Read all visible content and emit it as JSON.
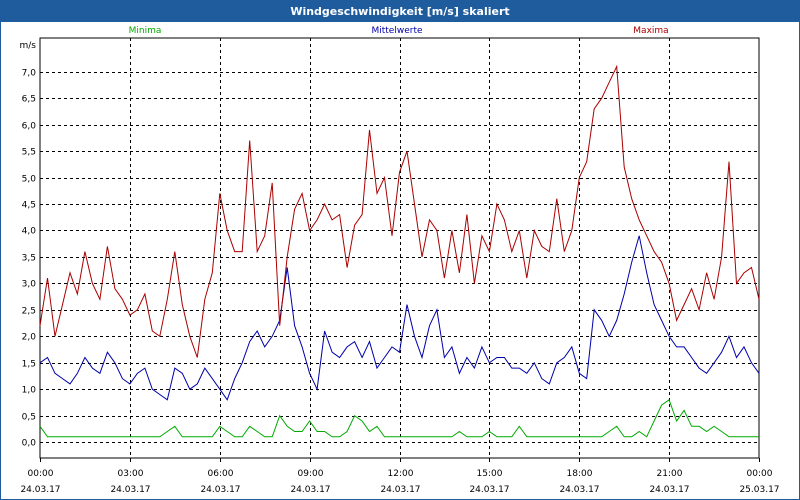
{
  "window": {
    "title": "Windgeschwindigkeit [m/s] skaliert"
  },
  "chart_data": {
    "type": "line",
    "title": "Windgeschwindigkeit [m/s] skaliert",
    "ylabel": "m/s",
    "ylim": [
      -0.3,
      7.6
    ],
    "yticks": [
      "0,0",
      "0,5",
      "1,0",
      "1,5",
      "2,0",
      "2,5",
      "3,0",
      "3,5",
      "4,0",
      "4,5",
      "5,0",
      "5,5",
      "6,0",
      "6,5",
      "7,0"
    ],
    "xticks": [
      {
        "time": "00:00",
        "date": "24.03.17"
      },
      {
        "time": "03:00",
        "date": "24.03.17"
      },
      {
        "time": "06:00",
        "date": "24.03.17"
      },
      {
        "time": "09:00",
        "date": "24.03.17"
      },
      {
        "time": "12:00",
        "date": "24.03.17"
      },
      {
        "time": "15:00",
        "date": "24.03.17"
      },
      {
        "time": "18:00",
        "date": "24.03.17"
      },
      {
        "time": "21:00",
        "date": "24.03.17"
      },
      {
        "time": "00:00",
        "date": "25.03.17"
      }
    ],
    "x_hours": [
      0,
      0.25,
      0.5,
      0.75,
      1,
      1.25,
      1.5,
      1.75,
      2,
      2.25,
      2.5,
      2.75,
      3,
      3.25,
      3.5,
      3.75,
      4,
      4.25,
      4.5,
      4.75,
      5,
      5.25,
      5.5,
      5.75,
      6,
      6.25,
      6.5,
      6.75,
      7,
      7.25,
      7.5,
      7.75,
      8,
      8.25,
      8.5,
      8.75,
      9,
      9.25,
      9.5,
      9.75,
      10,
      10.25,
      10.5,
      10.75,
      11,
      11.25,
      11.5,
      11.75,
      12,
      12.25,
      12.5,
      12.75,
      13,
      13.25,
      13.5,
      13.75,
      14,
      14.25,
      14.5,
      14.75,
      15,
      15.25,
      15.5,
      15.75,
      16,
      16.25,
      16.5,
      16.75,
      17,
      17.25,
      17.5,
      17.75,
      18,
      18.25,
      18.5,
      18.75,
      19,
      19.25,
      19.5,
      19.75,
      20,
      20.25,
      20.5,
      20.75,
      21,
      21.25,
      21.5,
      21.75,
      22,
      22.25,
      22.5,
      22.75,
      23,
      23.25,
      23.5,
      23.75,
      24
    ],
    "series": [
      {
        "name": "Minima",
        "color": "#00aa00",
        "values": [
          0.3,
          0.1,
          0.1,
          0.1,
          0.1,
          0.1,
          0.1,
          0.1,
          0.1,
          0.1,
          0.1,
          0.1,
          0.1,
          0.1,
          0.1,
          0.1,
          0.1,
          0.2,
          0.3,
          0.1,
          0.1,
          0.1,
          0.1,
          0.1,
          0.3,
          0.2,
          0.1,
          0.1,
          0.3,
          0.2,
          0.1,
          0.1,
          0.5,
          0.3,
          0.2,
          0.2,
          0.4,
          0.2,
          0.2,
          0.1,
          0.1,
          0.2,
          0.5,
          0.4,
          0.2,
          0.3,
          0.1,
          0.1,
          0.1,
          0.1,
          0.1,
          0.1,
          0.1,
          0.1,
          0.1,
          0.1,
          0.2,
          0.1,
          0.1,
          0.1,
          0.2,
          0.1,
          0.1,
          0.1,
          0.3,
          0.1,
          0.1,
          0.1,
          0.1,
          0.1,
          0.1,
          0.1,
          0.1,
          0.1,
          0.1,
          0.1,
          0.2,
          0.3,
          0.1,
          0.1,
          0.2,
          0.1,
          0.4,
          0.7,
          0.8,
          0.4,
          0.6,
          0.3,
          0.3,
          0.2,
          0.3,
          0.2,
          0.1,
          0.1,
          0.1,
          0.1,
          0.1
        ],
        "_note": "values at x_hours"
      },
      {
        "name": "Mittelwerte",
        "color": "#0000aa",
        "values": [
          1.5,
          1.6,
          1.3,
          1.2,
          1.1,
          1.3,
          1.6,
          1.4,
          1.3,
          1.7,
          1.5,
          1.2,
          1.1,
          1.3,
          1.4,
          1.0,
          0.9,
          0.8,
          1.4,
          1.3,
          1.0,
          1.1,
          1.4,
          1.2,
          1.0,
          0.8,
          1.2,
          1.5,
          1.9,
          2.1,
          1.8,
          2.0,
          2.3,
          3.3,
          2.2,
          1.8,
          1.3,
          1.0,
          2.1,
          1.7,
          1.6,
          1.8,
          1.9,
          1.6,
          1.9,
          1.4,
          1.6,
          1.8,
          1.7,
          2.6,
          2.0,
          1.6,
          2.2,
          2.5,
          1.6,
          1.8,
          1.3,
          1.6,
          1.4,
          1.8,
          1.5,
          1.6,
          1.6,
          1.4,
          1.4,
          1.3,
          1.5,
          1.2,
          1.1,
          1.5,
          1.6,
          1.8,
          1.3,
          1.2,
          2.5,
          2.3,
          2.0,
          2.3,
          2.8,
          3.4,
          3.9,
          3.2,
          2.6,
          2.3,
          2.0,
          1.8,
          1.8,
          1.6,
          1.4,
          1.3,
          1.5,
          1.7,
          2.0,
          1.6,
          1.8,
          1.5,
          1.3
        ],
        "_note": "values at x_hours"
      },
      {
        "name": "Maxima",
        "color": "#aa0000",
        "values": [
          2.2,
          3.1,
          2.0,
          2.6,
          3.2,
          2.8,
          3.6,
          3.0,
          2.7,
          3.7,
          2.9,
          2.7,
          2.4,
          2.5,
          2.8,
          2.1,
          2.0,
          2.7,
          3.6,
          2.6,
          2.0,
          1.6,
          2.7,
          3.2,
          4.7,
          4.0,
          3.6,
          3.6,
          5.7,
          3.6,
          3.9,
          4.9,
          2.2,
          3.5,
          4.4,
          4.7,
          4.0,
          4.2,
          4.5,
          4.2,
          4.3,
          3.3,
          4.1,
          4.3,
          5.9,
          4.7,
          5.0,
          3.9,
          5.1,
          5.5,
          4.5,
          3.5,
          4.2,
          4.0,
          3.1,
          4.0,
          3.2,
          4.3,
          3.0,
          3.9,
          3.6,
          4.5,
          4.2,
          3.6,
          4.0,
          3.1,
          4.0,
          3.7,
          3.6,
          4.6,
          3.6,
          4.0,
          5.0,
          5.3,
          6.3,
          6.5,
          6.8,
          7.1,
          5.2,
          4.6,
          4.2,
          3.9,
          3.6,
          3.4,
          3.0,
          2.3,
          2.6,
          2.9,
          2.5,
          3.2,
          2.7,
          3.5,
          5.3,
          3.0,
          3.2,
          3.3,
          2.7
        ],
        "_note": "values at x_hours"
      }
    ],
    "grid": true,
    "legend": "top"
  }
}
